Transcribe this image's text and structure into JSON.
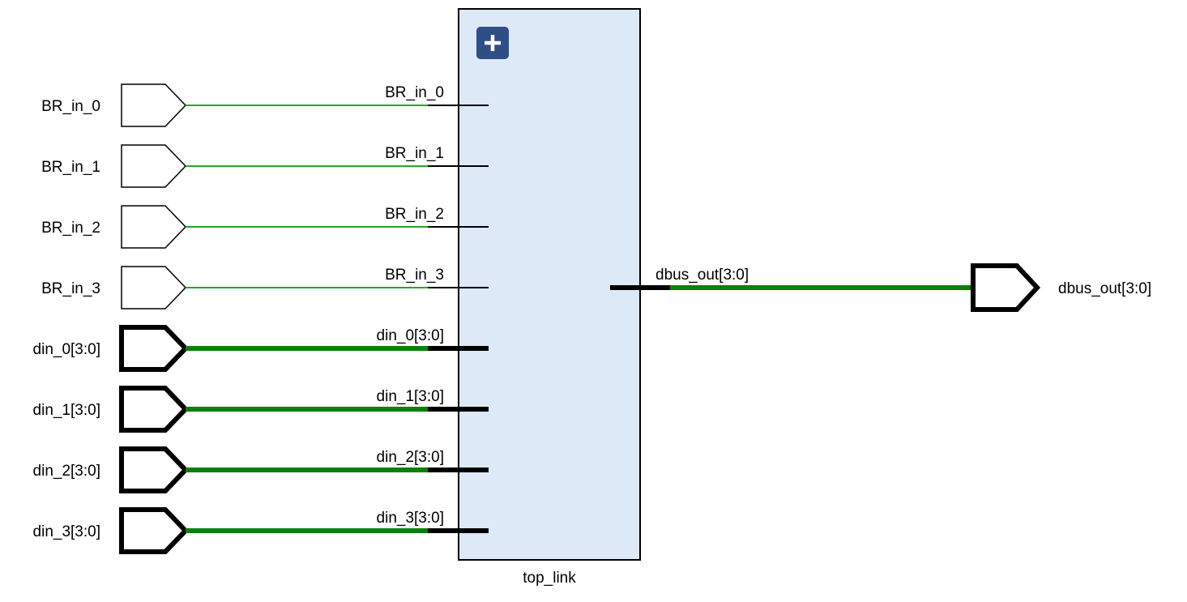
{
  "block": {
    "name": "top_link",
    "expand_icon": "plus-icon",
    "color": "#dde9f7",
    "button_color": "#2f4e86"
  },
  "inputs": [
    {
      "port_label": "BR_in_0",
      "pin_label": "BR_in_0",
      "bus": false
    },
    {
      "port_label": "BR_in_1",
      "pin_label": "BR_in_1",
      "bus": false
    },
    {
      "port_label": "BR_in_2",
      "pin_label": "BR_in_2",
      "bus": false
    },
    {
      "port_label": "BR_in_3",
      "pin_label": "BR_in_3",
      "bus": false
    },
    {
      "port_label": "din_0[3:0]",
      "pin_label": "din_0[3:0]",
      "bus": true
    },
    {
      "port_label": "din_1[3:0]",
      "pin_label": "din_1[3:0]",
      "bus": true
    },
    {
      "port_label": "din_2[3:0]",
      "pin_label": "din_2[3:0]",
      "bus": true
    },
    {
      "port_label": "din_3[3:0]",
      "pin_label": "din_3[3:0]",
      "bus": true
    }
  ],
  "output": {
    "port_label": "dbus_out[3:0]",
    "pin_label": "dbus_out[3:0]",
    "bus": true
  },
  "colors": {
    "wire_scalar": "#22aa22",
    "wire_bus": "#0a800a"
  }
}
